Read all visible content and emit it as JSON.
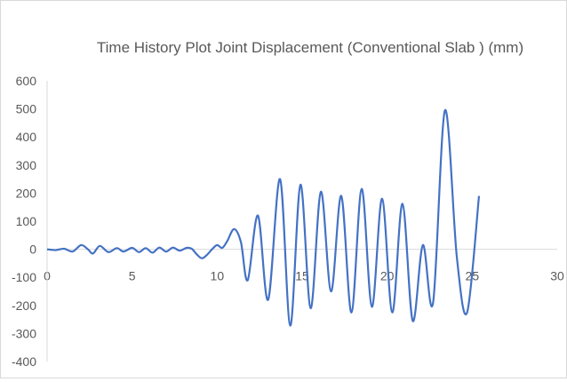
{
  "chart_data": {
    "type": "line",
    "title": "Time History Plot Joint Displacement (Conventional Slab ) (mm)",
    "xlabel": "",
    "ylabel": "",
    "xlim": [
      0,
      30
    ],
    "ylim": [
      -400,
      600
    ],
    "x_ticks": [
      "0",
      "5",
      "10",
      "15",
      "20",
      "25",
      "30"
    ],
    "y_ticks": [
      "600",
      "500",
      "400",
      "300",
      "200",
      "100",
      "0",
      "-100",
      "-200",
      "-300",
      "-400"
    ],
    "grid": false,
    "legend": "none",
    "series": [
      {
        "color": "#4472c4",
        "points": [
          [
            0.0,
            0
          ],
          [
            0.5,
            -3
          ],
          [
            1.0,
            2
          ],
          [
            1.5,
            -8
          ],
          [
            2.0,
            15
          ],
          [
            2.4,
            0
          ],
          [
            2.7,
            -15
          ],
          [
            3.1,
            12
          ],
          [
            3.6,
            -10
          ],
          [
            4.1,
            4
          ],
          [
            4.5,
            -8
          ],
          [
            5.0,
            5
          ],
          [
            5.4,
            -10
          ],
          [
            5.8,
            4
          ],
          [
            6.2,
            -12
          ],
          [
            6.6,
            6
          ],
          [
            7.0,
            -8
          ],
          [
            7.4,
            6
          ],
          [
            7.8,
            -5
          ],
          [
            8.2,
            5
          ],
          [
            8.5,
            2
          ],
          [
            8.8,
            -18
          ],
          [
            9.1,
            -32
          ],
          [
            9.4,
            -20
          ],
          [
            9.7,
            0
          ],
          [
            10.0,
            15
          ],
          [
            10.3,
            5
          ],
          [
            10.6,
            30
          ],
          [
            11.0,
            72
          ],
          [
            11.4,
            25
          ],
          [
            11.8,
            -110
          ],
          [
            12.4,
            120
          ],
          [
            13.0,
            -180
          ],
          [
            13.7,
            250
          ],
          [
            14.3,
            -272
          ],
          [
            14.9,
            230
          ],
          [
            15.5,
            -210
          ],
          [
            16.1,
            205
          ],
          [
            16.7,
            -150
          ],
          [
            17.3,
            190
          ],
          [
            17.9,
            -225
          ],
          [
            18.5,
            215
          ],
          [
            19.1,
            -205
          ],
          [
            19.7,
            180
          ],
          [
            20.3,
            -225
          ],
          [
            20.9,
            162
          ],
          [
            21.5,
            -255
          ],
          [
            22.1,
            15
          ],
          [
            22.7,
            -190
          ],
          [
            23.4,
            495
          ],
          [
            24.1,
            -30
          ],
          [
            24.7,
            -225
          ],
          [
            25.4,
            190
          ]
        ]
      }
    ]
  }
}
